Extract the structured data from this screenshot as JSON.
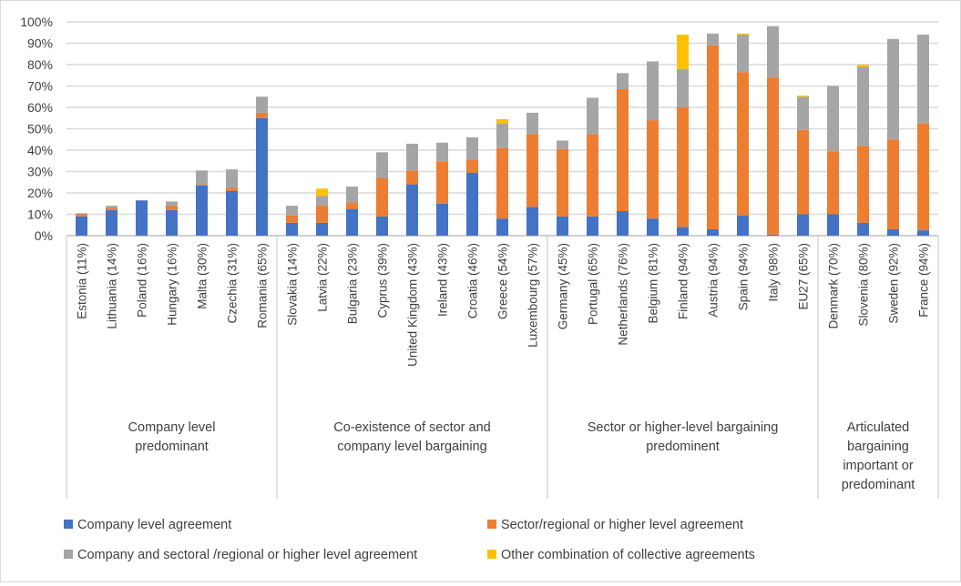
{
  "chart_data": {
    "type": "bar",
    "stacked": true,
    "title": "",
    "xlabel": "",
    "ylabel": "",
    "ylim": [
      0,
      100
    ],
    "yticks": [
      "0%",
      "10%",
      "20%",
      "30%",
      "40%",
      "50%",
      "60%",
      "70%",
      "80%",
      "90%",
      "100%"
    ],
    "grid": true,
    "legend_position": "bottom",
    "categories": [
      "Estonia (11%)",
      "Lithuania (14%)",
      "Poland (16%)",
      "Hungary (16%)",
      "Malta (30%)",
      "Czechia (31%)",
      "Romania (65%)",
      "Slovakia (14%)",
      "Latvia (22%)",
      "Bulgaria (23%)",
      "Cyprus (39%)",
      "United Kingdom (43%)",
      "Ireland (43%)",
      "Croatia (46%)",
      "Greece (54%)",
      "Luxembourg (57%)",
      "Germany (45%)",
      "Portugal (65%)",
      "Netherlands (76%)",
      "Belgium (81%)",
      "Finland (94%)",
      "Austria (94%)",
      "Spain (94%)",
      "Italy (98%)",
      "EU27 (65%)",
      "Denmark (70%)",
      "Slovenia (80%)",
      "Sweden (92%)",
      "France (94%)"
    ],
    "groups": [
      {
        "lines": [
          "Company level",
          "predominant"
        ],
        "count": 7
      },
      {
        "lines": [
          "Co-existence of sector and",
          "company level bargaining"
        ],
        "count": 9
      },
      {
        "lines": [
          "Sector or higher-level bargaining",
          "predominent"
        ],
        "count": 9
      },
      {
        "lines": [
          "Articulated",
          "bargaining",
          "important or",
          "predominant"
        ],
        "count": 4
      }
    ],
    "series": [
      {
        "name": "Company level agreement",
        "color": "#4472C4",
        "values": [
          9,
          12,
          16.5,
          12,
          23.5,
          21,
          55,
          6,
          6,
          12.5,
          9,
          24,
          15,
          29.5,
          8,
          13.5,
          9,
          9,
          11.5,
          8,
          4,
          3,
          9.5,
          0.5,
          10,
          10,
          6,
          3,
          2.5
        ]
      },
      {
        "name": "Sector/regional or higher level agreement",
        "color": "#ED7D31",
        "values": [
          1,
          1,
          0,
          2,
          0.5,
          1.5,
          2.5,
          3.5,
          8,
          3,
          18,
          6.5,
          19.5,
          6,
          33,
          34,
          31.5,
          38.5,
          57,
          46,
          56,
          86,
          67,
          73.5,
          39.5,
          29.5,
          36,
          42,
          50
        ]
      },
      {
        "name": "Company and sectoral /regional or higher level agreement",
        "color": "#A5A5A5",
        "values": [
          0.5,
          1,
          0,
          2,
          6.5,
          8.5,
          7.5,
          4.5,
          4.5,
          7.5,
          12,
          12.5,
          9,
          10.5,
          11.5,
          10,
          4,
          17,
          7.5,
          27.5,
          18,
          5.5,
          17.5,
          24,
          15.5,
          30.5,
          37,
          47,
          41.5
        ]
      },
      {
        "name": "Other combination of collective agreements",
        "color": "#FFC000",
        "values": [
          0,
          0,
          0,
          0,
          0,
          0,
          0,
          0,
          3.5,
          0,
          0,
          0,
          0,
          0,
          2,
          0,
          0,
          0,
          0,
          0,
          16,
          0,
          0.5,
          0,
          0.5,
          0,
          1,
          0,
          0
        ]
      }
    ]
  }
}
